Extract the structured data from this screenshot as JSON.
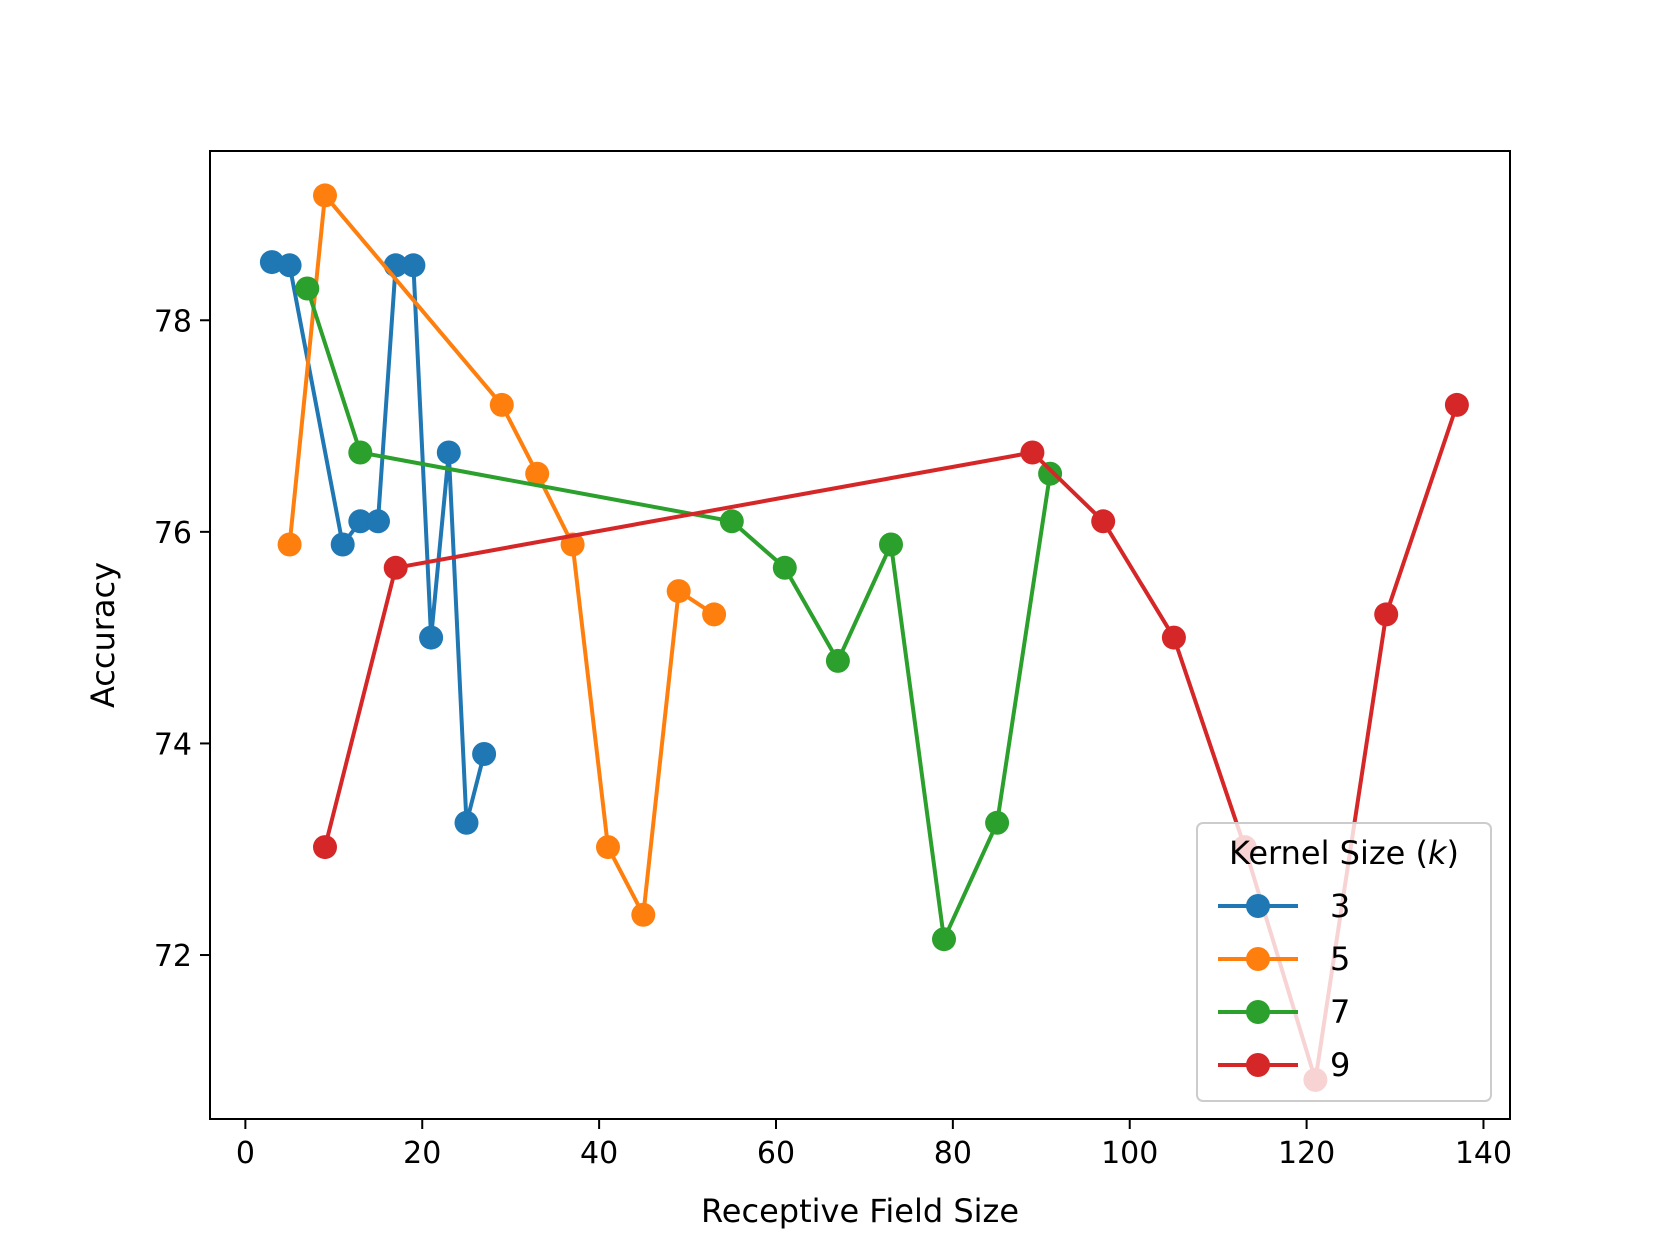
{
  "chart_data": {
    "type": "line",
    "title": "",
    "xlabel": "Receptive Field Size",
    "ylabel": "Accuracy",
    "xlim": [
      -4,
      143
    ],
    "ylim": [
      70.45,
      79.6
    ],
    "xticks": [
      0,
      20,
      40,
      60,
      80,
      100,
      120,
      140
    ],
    "yticks": [
      72,
      74,
      76,
      78
    ],
    "grid": false,
    "legend": {
      "title_prefix": "Kernel Size (",
      "title_var": "k",
      "title_suffix": ")",
      "position": "lower-right"
    },
    "series": [
      {
        "name": "3",
        "color": "#1f77b4",
        "x": [
          3,
          5,
          11,
          13,
          15,
          17,
          19,
          21,
          23,
          25,
          27
        ],
        "y": [
          78.55,
          78.52,
          75.88,
          76.1,
          76.1,
          78.52,
          78.52,
          75.0,
          76.75,
          73.25,
          73.9
        ]
      },
      {
        "name": "5",
        "color": "#ff7f0e",
        "x": [
          5,
          9,
          29,
          33,
          37,
          41,
          45,
          49,
          53
        ],
        "y": [
          75.88,
          79.18,
          77.2,
          76.55,
          75.88,
          73.02,
          72.38,
          75.44,
          75.22
        ]
      },
      {
        "name": "7",
        "color": "#2ca02c",
        "x": [
          7,
          13,
          55,
          61,
          67,
          73,
          79,
          85,
          91
        ],
        "y": [
          78.3,
          76.75,
          76.1,
          75.66,
          74.78,
          75.88,
          72.15,
          73.25,
          76.55
        ]
      },
      {
        "name": "9",
        "color": "#d62728",
        "x": [
          9,
          17,
          89,
          97,
          105,
          113,
          121,
          129,
          137
        ],
        "y": [
          73.02,
          75.66,
          76.75,
          76.1,
          75.0,
          73.02,
          70.82,
          75.22,
          77.2
        ]
      }
    ]
  }
}
